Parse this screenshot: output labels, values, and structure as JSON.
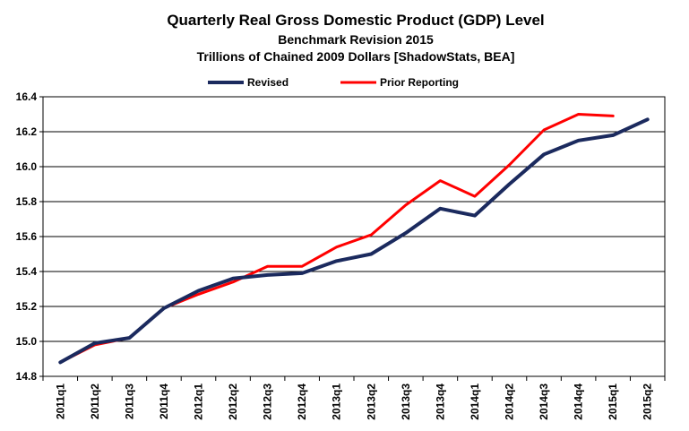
{
  "chart_data": {
    "type": "line",
    "title": "Quarterly Real Gross Domestic Product (GDP) Level",
    "subtitle": "Benchmark Revision 2015",
    "subtitle2": "Trillions  of Chained 2009 Dollars [ShadowStats, BEA]",
    "xlabel": "",
    "ylabel": "",
    "ylim": [
      14.8,
      16.4
    ],
    "yticks": [
      "14.8",
      "15.0",
      "15.2",
      "15.4",
      "15.6",
      "15.8",
      "16.0",
      "16.2",
      "16.4"
    ],
    "grid": true,
    "legend_position": "top-center",
    "categories": [
      "2011q1",
      "2011q2",
      "2011q3",
      "2011q4",
      "2012q1",
      "2012q2",
      "2012q3",
      "2012q4",
      "2013q1",
      "2013q2",
      "2013q3",
      "2013q4",
      "2014q1",
      "2014q2",
      "2014q3",
      "2014q4",
      "2015q1",
      "2015q2"
    ],
    "series": [
      {
        "name": "Revised",
        "color": "#1b2a5e",
        "values": [
          14.88,
          14.99,
          15.02,
          15.19,
          15.29,
          15.36,
          15.38,
          15.39,
          15.46,
          15.5,
          15.62,
          15.76,
          15.72,
          15.9,
          16.07,
          16.15,
          16.18,
          16.27
        ]
      },
      {
        "name": "Prior Reporting",
        "color": "#ff0000",
        "values": [
          14.88,
          14.98,
          15.02,
          15.19,
          15.27,
          15.34,
          15.43,
          15.43,
          15.54,
          15.61,
          15.78,
          15.92,
          15.83,
          16.01,
          16.21,
          16.3,
          16.29,
          null
        ]
      }
    ]
  }
}
